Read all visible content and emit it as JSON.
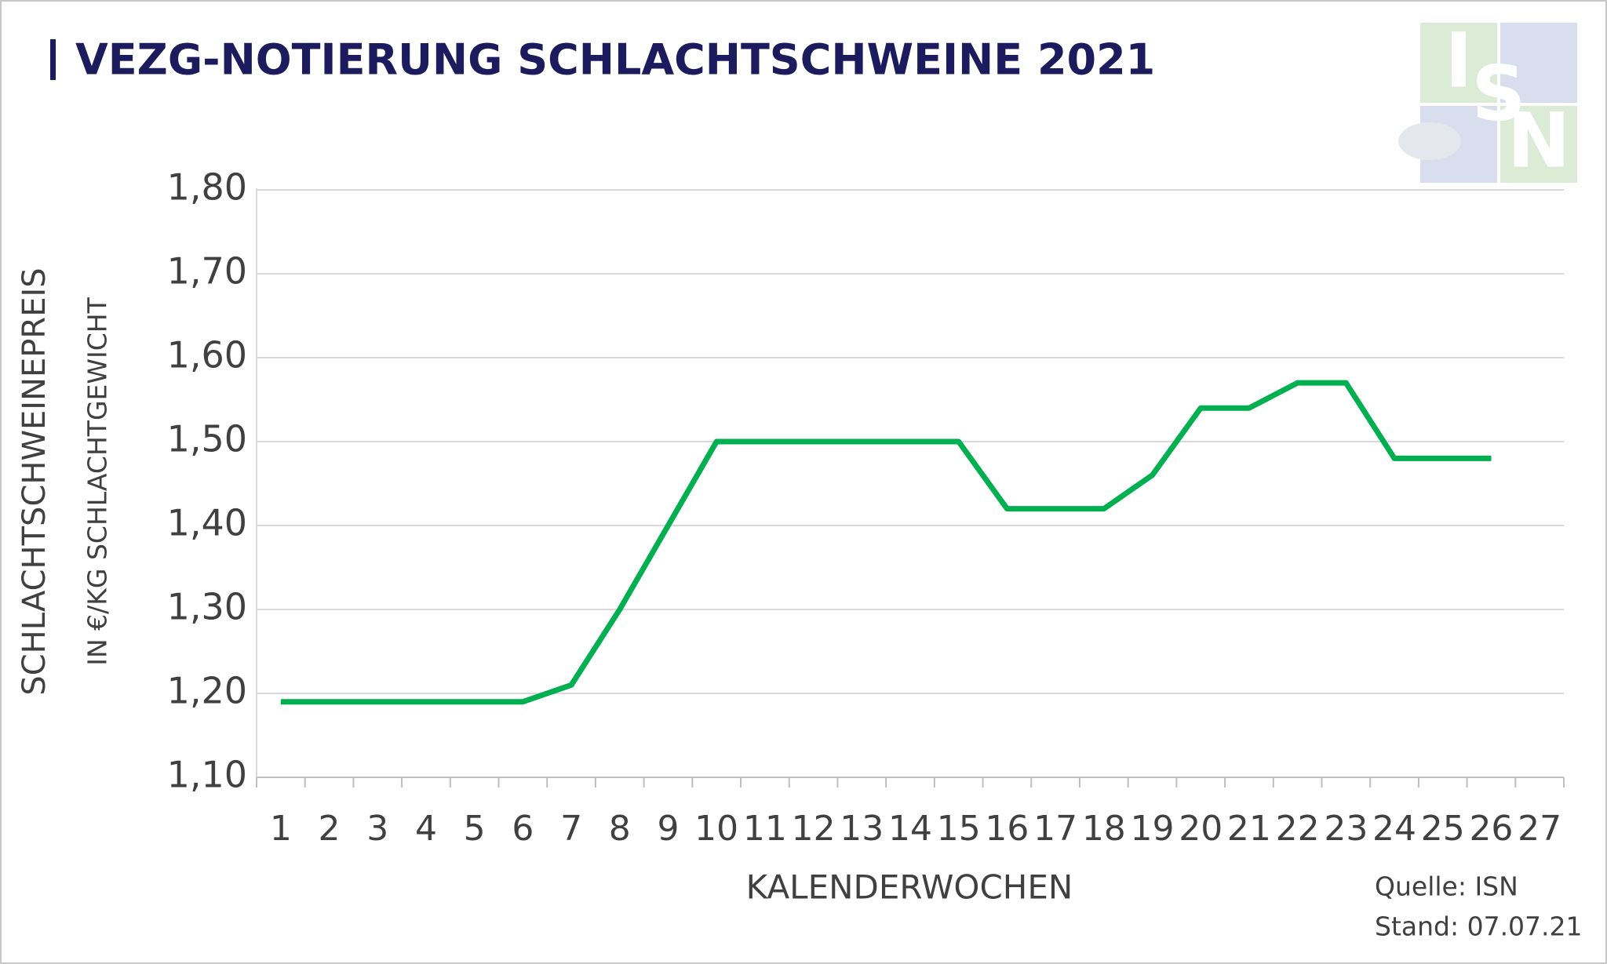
{
  "chart_data": {
    "type": "line",
    "title": "VEZG-NOTIERUNG SCHLACHTSCHWEINE 2021",
    "y_label": [
      "SCHLACHTSCHWEINEPREIS",
      "IN €/KG SCHLACHTGEWICHT"
    ],
    "x_label": "KALENDERWOCHEN",
    "source": [
      "Quelle: ISN",
      "Stand: 07.07.21"
    ],
    "logo": [
      "I",
      "S",
      "N"
    ],
    "categories": [
      "1",
      "2",
      "3",
      "4",
      "5",
      "6",
      "7",
      "8",
      "9",
      "10",
      "11",
      "12",
      "13",
      "14",
      "15",
      "16",
      "17",
      "18",
      "19",
      "20",
      "21",
      "22",
      "23",
      "24",
      "25",
      "26",
      "27"
    ],
    "series": [
      {
        "name": "VEZG-Notierung",
        "color": "#00b050",
        "values": [
          1.19,
          1.19,
          1.19,
          1.19,
          1.19,
          1.19,
          1.21,
          1.3,
          1.4,
          1.5,
          1.5,
          1.5,
          1.5,
          1.5,
          1.5,
          1.42,
          1.42,
          1.42,
          1.46,
          1.54,
          1.54,
          1.57,
          1.57,
          1.48,
          1.48,
          1.48,
          null
        ]
      }
    ],
    "ylim": [
      1.1,
      1.8
    ],
    "yticks": [
      {
        "value": 1.1,
        "label": "1,10"
      },
      {
        "value": 1.2,
        "label": "1,20"
      },
      {
        "value": 1.3,
        "label": "1,30"
      },
      {
        "value": 1.4,
        "label": "1,40"
      },
      {
        "value": 1.5,
        "label": "1,50"
      },
      {
        "value": 1.6,
        "label": "1,60"
      },
      {
        "value": 1.7,
        "label": "1,70"
      },
      {
        "value": 1.8,
        "label": "1,80"
      }
    ],
    "grid": true
  }
}
